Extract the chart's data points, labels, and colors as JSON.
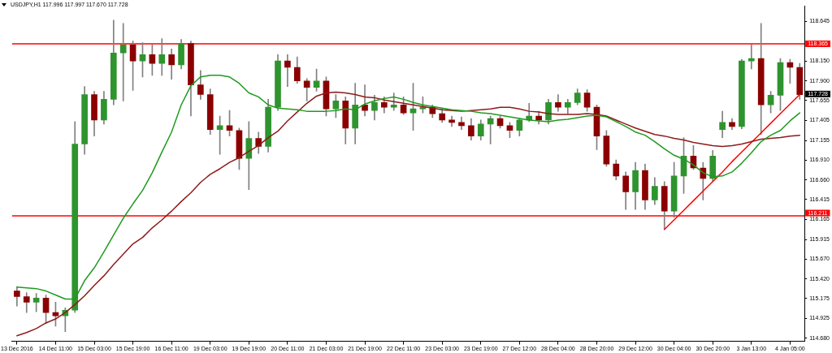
{
  "chart_data": {
    "type": "candlestick",
    "title": "USDJPY,H1 117.996 117.997 117.670 117.728",
    "categories": [
      "13 Dec 2016",
      null,
      null,
      null,
      "14 Dec 11:00",
      null,
      null,
      null,
      "15 Dec 03:00",
      null,
      null,
      null,
      "15 Dec 19:00",
      null,
      null,
      null,
      "16 Dec 11:00",
      null,
      null,
      null,
      "19 Dec 03:00",
      null,
      null,
      null,
      "19 Dec 19:00",
      null,
      null,
      null,
      "20 Dec 11:00",
      null,
      null,
      null,
      "21 Dec 03:00",
      null,
      null,
      null,
      "21 Dec 19:00",
      null,
      null,
      null,
      "22 Dec 11:00",
      null,
      null,
      null,
      "23 Dec 03:00",
      null,
      null,
      null,
      "23 Dec 19:00",
      null,
      null,
      null,
      "27 Dec 12:00",
      null,
      null,
      null,
      "28 Dec 04:00",
      null,
      null,
      null,
      "28 Dec 20:00",
      null,
      null,
      null,
      "29 Dec 12:00",
      null,
      null,
      null,
      "30 Dec 04:00",
      null,
      null,
      null,
      "30 Dec 20:00",
      null,
      null,
      null,
      "3 Jan 13:00",
      null,
      null,
      null,
      "4 Jan 05:00",
      null
    ],
    "ohlc": [
      [
        115.27,
        115.32,
        115.08,
        115.2
      ],
      [
        115.2,
        115.25,
        115.0,
        115.13
      ],
      [
        115.13,
        115.24,
        115.01,
        115.18
      ],
      [
        115.18,
        115.22,
        114.86,
        115.0
      ],
      [
        115.0,
        115.13,
        114.83,
        114.96
      ],
      [
        114.96,
        115.06,
        114.76,
        115.03
      ],
      [
        115.03,
        117.39,
        115.0,
        117.11
      ],
      [
        117.11,
        117.83,
        116.98,
        117.73
      ],
      [
        117.73,
        117.77,
        117.21,
        117.41
      ],
      [
        117.41,
        117.77,
        117.36,
        117.67
      ],
      [
        117.67,
        118.66,
        117.6,
        118.25
      ],
      [
        118.25,
        118.62,
        117.65,
        118.35
      ],
      [
        118.35,
        118.4,
        117.78,
        118.15
      ],
      [
        118.15,
        118.38,
        117.95,
        118.23
      ],
      [
        118.23,
        118.35,
        117.97,
        118.12
      ],
      [
        118.12,
        118.43,
        117.97,
        118.23
      ],
      [
        118.23,
        118.3,
        117.92,
        118.1
      ],
      [
        118.1,
        118.42,
        118.05,
        118.37
      ],
      [
        118.37,
        118.4,
        117.46,
        117.85
      ],
      [
        117.85,
        118.03,
        117.67,
        117.73
      ],
      [
        117.73,
        117.8,
        117.23,
        117.29
      ],
      [
        117.29,
        117.46,
        116.98,
        117.34
      ],
      [
        117.34,
        117.53,
        117.21,
        117.28
      ],
      [
        117.28,
        117.31,
        116.79,
        116.93
      ],
      [
        116.93,
        117.39,
        116.54,
        117.18
      ],
      [
        117.18,
        117.26,
        116.99,
        117.08
      ],
      [
        117.08,
        117.67,
        117.01,
        117.57
      ],
      [
        117.57,
        118.23,
        117.53,
        118.15
      ],
      [
        118.15,
        118.23,
        117.83,
        118.07
      ],
      [
        118.07,
        118.2,
        117.87,
        117.9
      ],
      [
        117.9,
        117.93,
        117.65,
        117.82
      ],
      [
        117.82,
        118.05,
        117.77,
        117.9
      ],
      [
        117.9,
        117.95,
        117.46,
        117.55
      ],
      [
        117.55,
        117.73,
        117.44,
        117.65
      ],
      [
        117.65,
        117.7,
        117.11,
        117.31
      ],
      [
        117.31,
        117.87,
        117.11,
        117.6
      ],
      [
        117.6,
        117.85,
        117.46,
        117.53
      ],
      [
        117.53,
        117.72,
        117.41,
        117.63
      ],
      [
        117.63,
        117.7,
        117.5,
        117.57
      ],
      [
        117.57,
        117.75,
        117.53,
        117.6
      ],
      [
        117.6,
        117.7,
        117.48,
        117.5
      ],
      [
        117.5,
        117.87,
        117.28,
        117.55
      ],
      [
        117.55,
        117.7,
        117.5,
        117.57
      ],
      [
        117.57,
        117.6,
        117.44,
        117.49
      ],
      [
        117.49,
        117.55,
        117.38,
        117.41
      ],
      [
        117.41,
        117.46,
        117.33,
        117.38
      ],
      [
        117.38,
        117.45,
        117.29,
        117.34
      ],
      [
        117.34,
        117.43,
        117.16,
        117.21
      ],
      [
        117.21,
        117.41,
        117.16,
        117.36
      ],
      [
        117.36,
        117.46,
        117.11,
        117.43
      ],
      [
        117.43,
        117.46,
        117.31,
        117.34
      ],
      [
        117.34,
        117.38,
        117.19,
        117.28
      ],
      [
        117.28,
        117.43,
        117.21,
        117.41
      ],
      [
        117.41,
        117.62,
        117.39,
        117.46
      ],
      [
        117.46,
        117.52,
        117.36,
        117.41
      ],
      [
        117.41,
        117.67,
        117.36,
        117.63
      ],
      [
        117.63,
        117.73,
        117.52,
        117.57
      ],
      [
        117.57,
        117.67,
        117.49,
        117.63
      ],
      [
        117.63,
        117.8,
        117.6,
        117.75
      ],
      [
        117.75,
        117.79,
        117.52,
        117.57
      ],
      [
        117.57,
        117.6,
        117.04,
        117.21
      ],
      [
        117.21,
        117.28,
        116.83,
        116.86
      ],
      [
        116.86,
        116.91,
        116.66,
        116.71
      ],
      [
        116.71,
        116.76,
        116.29,
        116.51
      ],
      [
        116.51,
        116.88,
        116.29,
        116.78
      ],
      [
        116.78,
        116.86,
        116.29,
        116.41
      ],
      [
        116.41,
        116.69,
        116.35,
        116.58
      ],
      [
        116.58,
        116.64,
        116.04,
        116.27
      ],
      [
        116.27,
        116.88,
        116.19,
        116.71
      ],
      [
        116.71,
        117.19,
        116.49,
        116.96
      ],
      [
        116.96,
        117.09,
        116.79,
        116.81
      ],
      [
        116.81,
        116.88,
        116.41,
        116.68
      ],
      [
        116.68,
        117.03,
        116.64,
        116.96
      ],
      [
        117.29,
        117.52,
        117.19,
        117.38
      ],
      [
        117.38,
        117.43,
        117.29,
        117.33
      ],
      [
        117.33,
        118.17,
        117.3,
        118.15
      ],
      [
        118.15,
        118.35,
        118.05,
        118.18
      ],
      [
        118.18,
        118.62,
        117.23,
        117.6
      ],
      [
        117.6,
        117.77,
        117.5,
        117.72
      ],
      [
        117.72,
        118.18,
        117.53,
        118.13
      ],
      [
        118.13,
        118.17,
        117.87,
        118.07
      ],
      [
        118.07,
        118.12,
        117.67,
        117.728
      ]
    ],
    "colors": [
      "#8b0000",
      "#8b0000",
      "#2e942e",
      "#8b0000",
      "#8b0000",
      "#2e942e",
      "#2e942e",
      "#2e942e",
      "#8b0000",
      "#2e942e",
      "#2e942e",
      "#2e942e",
      "#8b0000",
      "#2e942e",
      "#8b0000",
      "#2e942e",
      "#8b0000",
      "#2e942e",
      "#8b0000",
      "#8b0000",
      "#8b0000",
      "#2e942e",
      "#8b0000",
      "#8b0000",
      "#2e942e",
      "#8b0000",
      "#2e942e",
      "#2e942e",
      "#8b0000",
      "#8b0000",
      "#8b0000",
      "#2e942e",
      "#8b0000",
      "#2e942e",
      "#8b0000",
      "#2e942e",
      "#8b0000",
      "#2e942e",
      "#8b0000",
      "#2e942e",
      "#8b0000",
      "#2e942e",
      "#2e942e",
      "#8b0000",
      "#8b0000",
      "#8b0000",
      "#8b0000",
      "#8b0000",
      "#2e942e",
      "#2e942e",
      "#8b0000",
      "#8b0000",
      "#2e942e",
      "#2e942e",
      "#8b0000",
      "#2e942e",
      "#8b0000",
      "#2e942e",
      "#2e942e",
      "#8b0000",
      "#8b0000",
      "#8b0000",
      "#8b0000",
      "#8b0000",
      "#2e942e",
      "#8b0000",
      "#2e942e",
      "#8b0000",
      "#2e942e",
      "#2e942e",
      "#8b0000",
      "#8b0000",
      "#2e942e",
      "#2e942e",
      "#8b0000",
      "#2e942e",
      "#2e942e",
      "#8b0000",
      "#2e942e",
      "#2e942e",
      "#8b0000",
      "#8b0000"
    ],
    "color": "#808080",
    "series": [
      {
        "type": "line",
        "color": "#1f9a1f",
        "values": [
          115.32,
          115.31,
          115.3,
          115.27,
          115.22,
          115.17,
          115.17,
          115.4,
          115.56,
          115.76,
          115.97,
          116.18,
          116.36,
          116.53,
          116.75,
          117.01,
          117.26,
          117.6,
          117.84,
          117.95,
          117.97,
          117.97,
          117.95,
          117.87,
          117.75,
          117.7,
          117.6,
          117.56,
          117.55,
          117.54,
          117.52,
          117.52,
          117.52,
          117.53,
          117.55,
          117.54,
          117.61,
          117.65,
          117.68,
          117.7,
          117.67,
          117.63,
          117.6,
          117.58,
          117.56,
          117.54,
          117.53,
          117.52,
          117.5,
          117.49,
          117.47,
          117.45,
          117.43,
          117.41,
          117.4,
          117.39,
          117.41,
          117.42,
          117.44,
          117.46,
          117.47,
          117.45,
          117.39,
          117.33,
          117.26,
          117.22,
          117.14,
          117.05,
          116.97,
          116.92,
          116.85,
          116.75,
          116.7,
          116.71,
          116.76,
          116.87,
          117.0,
          117.14,
          117.22,
          117.28,
          117.4,
          117.5
        ]
      },
      {
        "type": "line",
        "color": "#8e1b1b",
        "values": [
          114.71,
          114.75,
          114.8,
          114.87,
          114.92,
          115.0,
          115.1,
          115.21,
          115.34,
          115.46,
          115.6,
          115.73,
          115.86,
          115.94,
          116.06,
          116.16,
          116.27,
          116.39,
          116.5,
          116.63,
          116.73,
          116.8,
          116.88,
          116.94,
          117.02,
          117.09,
          117.19,
          117.27,
          117.4,
          117.51,
          117.62,
          117.71,
          117.75,
          117.76,
          117.75,
          117.73,
          117.7,
          117.69,
          117.66,
          117.64,
          117.62,
          117.6,
          117.58,
          117.56,
          117.54,
          117.53,
          117.52,
          117.53,
          117.54,
          117.55,
          117.57,
          117.57,
          117.55,
          117.52,
          117.51,
          117.49,
          117.48,
          117.48,
          117.48,
          117.49,
          117.48,
          117.46,
          117.41,
          117.36,
          117.31,
          117.27,
          117.23,
          117.21,
          117.18,
          117.16,
          117.13,
          117.11,
          117.09,
          117.08,
          117.09,
          117.11,
          117.14,
          117.17,
          117.18,
          117.19,
          117.21,
          117.22
        ]
      },
      {
        "type": "line",
        "color": "#ff0000",
        "values": [
          null,
          null,
          null,
          null,
          null,
          null,
          null,
          null,
          null,
          null,
          null,
          null,
          null,
          null,
          null,
          null,
          null,
          null,
          null,
          null,
          null,
          null,
          null,
          null,
          null,
          null,
          null,
          null,
          null,
          null,
          null,
          null,
          null,
          null,
          null,
          null,
          null,
          null,
          null,
          null,
          null,
          null,
          null,
          null,
          null,
          null,
          null,
          null,
          null,
          null,
          null,
          null,
          null,
          null,
          null,
          null,
          null,
          null,
          null,
          null,
          null,
          null,
          null,
          null,
          null,
          null,
          null,
          116.04,
          116.16,
          116.28,
          116.4,
          116.52,
          116.64,
          116.76,
          116.89,
          117.01,
          117.13,
          117.25,
          117.37,
          117.49,
          117.61,
          117.73
        ]
      }
    ],
    "ref_lines": [
      {
        "axis": "y",
        "value": 118.365,
        "label": "118.365",
        "color": "#ff0000"
      },
      {
        "axis": "y",
        "value": 116.211,
        "label": "116.211",
        "color": "#ff0000"
      }
    ],
    "annotations": [
      "117.728"
    ],
    "ylim": [
      114.64,
      118.84
    ],
    "yticks": [
      118.645,
      {
        "value": 118.15,
        "label": "118.150"
      },
      {
        "value": 117.9,
        "label": "117.900"
      },
      117.655,
      117.405,
      117.155,
      {
        "value": 116.91,
        "label": "116.910"
      },
      {
        "value": 116.66,
        "label": "116.660"
      },
      116.415,
      116.165,
      115.915,
      {
        "value": 115.67,
        "label": "115.670"
      },
      {
        "value": 115.42,
        "label": "115.420"
      },
      115.175,
      114.925,
      {
        "value": 114.68,
        "label": "114.680"
      }
    ]
  }
}
